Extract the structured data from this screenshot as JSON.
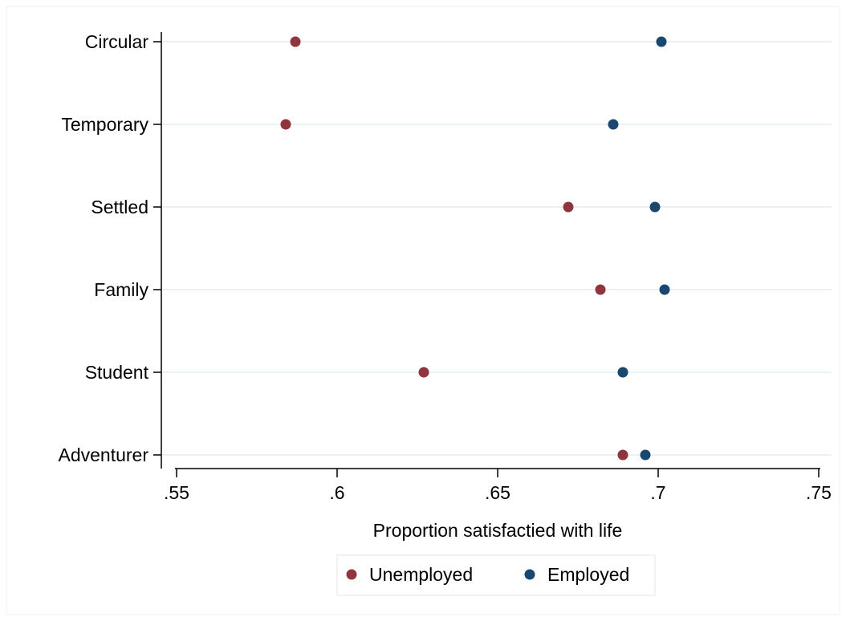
{
  "chart_data": {
    "type": "scatter",
    "orientation": "horizontal-dot",
    "categories": [
      "Circular",
      "Temporary",
      "Settled",
      "Family",
      "Student",
      "Adventurer"
    ],
    "series": [
      {
        "name": "Unemployed",
        "color": "#90353b",
        "values": [
          0.587,
          0.584,
          0.672,
          0.682,
          0.627,
          0.689
        ]
      },
      {
        "name": "Employed",
        "color": "#1a476f",
        "values": [
          0.701,
          0.686,
          0.699,
          0.702,
          0.689,
          0.696
        ]
      }
    ],
    "x_ticks": [
      ".55",
      ".6",
      ".65",
      ".7",
      ".75"
    ],
    "x_tick_values": [
      0.55,
      0.6,
      0.65,
      0.7,
      0.75
    ],
    "xlim": [
      0.55,
      0.75
    ],
    "xlabel": "Proportion satisfactied with life",
    "ylabel": "",
    "grid": true,
    "gridline_color": "#eaf2f3",
    "legend_position": "bottom"
  }
}
